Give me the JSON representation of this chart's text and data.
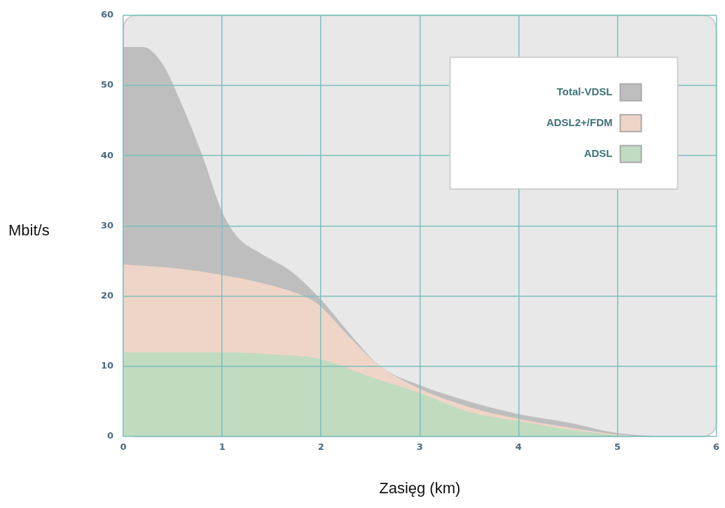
{
  "chart_data": {
    "type": "area",
    "xlabel": "Zasięg (km)",
    "ylabel": "Mbit/s",
    "xlim": [
      0,
      6
    ],
    "xticks": [
      0,
      1,
      2,
      3,
      4,
      5,
      6
    ],
    "ylim": [
      0,
      60
    ],
    "yticks": [
      0,
      10,
      20,
      30,
      40,
      50,
      60
    ],
    "grid": true,
    "legend": "top right",
    "marker": "none",
    "series": [
      {
        "name": "Total-VDSL",
        "color": "#bebebe",
        "x": [
          0,
          0.2,
          0.4,
          0.6,
          0.8,
          1.0,
          1.15,
          1.4,
          1.7,
          2.0,
          2.3,
          2.6,
          3.0,
          3.5,
          4.0,
          4.5,
          5.0,
          5.5
        ],
        "values": [
          55.5,
          55.5,
          53,
          47,
          40,
          32,
          28.5,
          26,
          23.5,
          19.5,
          14.5,
          10,
          7.3,
          5,
          3.2,
          2,
          0.5,
          0
        ]
      },
      {
        "name": "ADSL2+/FDM",
        "color": "#efd5c8",
        "x": [
          0,
          0.5,
          1.0,
          1.5,
          1.9,
          2.0,
          2.3,
          2.6,
          3.0,
          3.5,
          4.0,
          4.5,
          5.0,
          5.3
        ],
        "values": [
          24.5,
          24,
          23,
          21.5,
          19.5,
          18.5,
          14,
          10,
          6.8,
          4.2,
          2.5,
          1.3,
          0.3,
          0
        ]
      },
      {
        "name": "ADSL",
        "color": "#c0dbc0",
        "x": [
          0,
          1.0,
          1.5,
          2.0,
          2.5,
          3.0,
          3.5,
          4.0,
          4.5,
          5.0,
          5.2
        ],
        "values": [
          12,
          12,
          11.7,
          11,
          8.5,
          6.2,
          3.5,
          2.2,
          1,
          0.2,
          0
        ]
      }
    ]
  }
}
